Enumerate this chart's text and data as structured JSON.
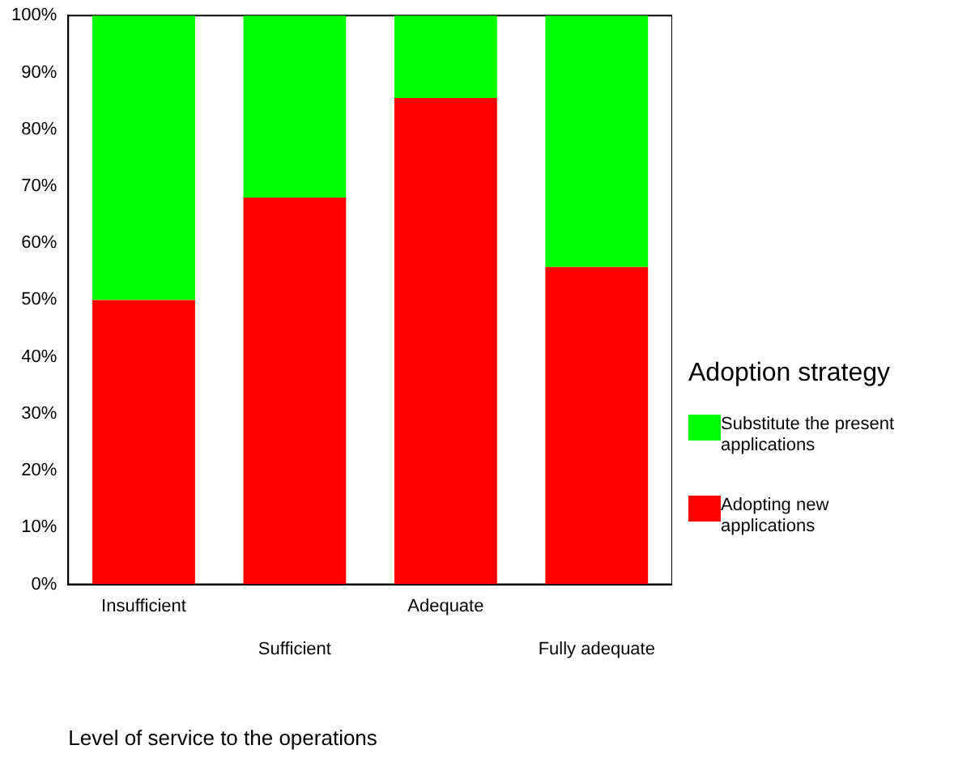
{
  "chart_data": {
    "type": "bar",
    "stacked": true,
    "categories": [
      "Insufficient",
      "Sufficient",
      "Adequate",
      "Fully adequate"
    ],
    "series": [
      {
        "name": "Adopting new applications",
        "color": "#ff0000",
        "values": [
          50,
          68,
          85.5,
          55.8
        ]
      },
      {
        "name": "Substitute the present applications",
        "color": "#00ff00",
        "values": [
          50,
          32,
          14.5,
          44.2
        ]
      }
    ],
    "ylim": [
      0,
      100
    ],
    "yticks": [
      {
        "value": 0,
        "label": "0%"
      },
      {
        "value": 10,
        "label": "10%"
      },
      {
        "value": 20,
        "label": "20%"
      },
      {
        "value": 30,
        "label": "30%"
      },
      {
        "value": 40,
        "label": "40%"
      },
      {
        "value": 50,
        "label": "50%"
      },
      {
        "value": 60,
        "label": "60%"
      },
      {
        "value": 70,
        "label": "70%"
      },
      {
        "value": 80,
        "label": "80%"
      },
      {
        "value": 90,
        "label": "90%"
      },
      {
        "value": 100,
        "label": "100%"
      }
    ],
    "xlabel": "Level of service to the operations",
    "legend_title": "Adoption strategy",
    "legend": "right",
    "grid": false
  }
}
